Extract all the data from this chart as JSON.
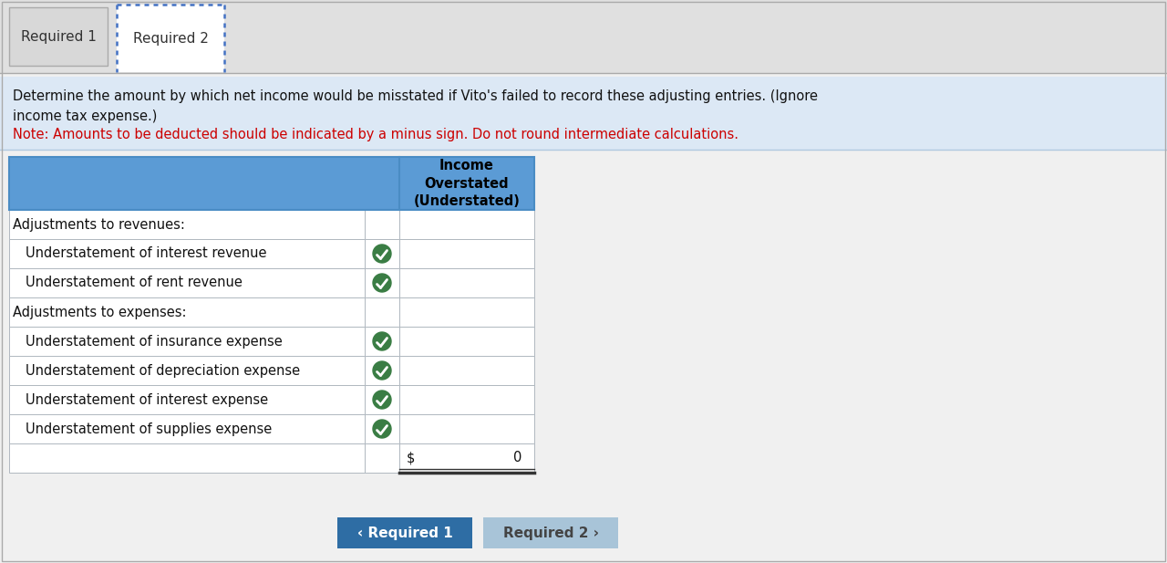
{
  "bg_color": "#f0f0f0",
  "tab1_label": "Required 1",
  "tab2_label": "Required 2",
  "instruction_bg": "#dce8f5",
  "instruction_text_line1": "Determine the amount by which net income would be misstated if Vito's failed to record these adjusting entries. (Ignore",
  "instruction_text_line2": "income tax expense.)",
  "note_text": "Note: Amounts to be deducted should be indicated by a minus sign. Do not round intermediate calculations.",
  "note_color": "#cc0000",
  "header_bg": "#5b9bd5",
  "header_text": "Income\nOverstated\n(Understated)",
  "rows": [
    {
      "label": "Adjustments to revenues:",
      "indent": false,
      "has_check": false,
      "is_section": true
    },
    {
      "label": "Understatement of interest revenue",
      "indent": true,
      "has_check": true,
      "is_section": false
    },
    {
      "label": "Understatement of rent revenue",
      "indent": true,
      "has_check": true,
      "is_section": false
    },
    {
      "label": "Adjustments to expenses:",
      "indent": false,
      "has_check": false,
      "is_section": true
    },
    {
      "label": "Understatement of insurance expense",
      "indent": true,
      "has_check": true,
      "is_section": false
    },
    {
      "label": "Understatement of depreciation expense",
      "indent": true,
      "has_check": true,
      "is_section": false
    },
    {
      "label": "Understatement of interest expense",
      "indent": true,
      "has_check": true,
      "is_section": false
    },
    {
      "label": "Understatement of supplies expense",
      "indent": true,
      "has_check": true,
      "is_section": false
    }
  ],
  "total_value": "0",
  "btn1_label": "Required 1",
  "btn2_label": "Required 2",
  "btn1_color": "#2e6da4",
  "btn2_color": "#a8c4d8",
  "check_color": "#3a7d44",
  "row_bg_white": "#ffffff",
  "row_bg_light": "#efefef",
  "border_color": "#b0b8c0",
  "tab_strip_bg": "#e0e0e0",
  "tab1_bg": "#d8d8d8",
  "tab2_bg": "#ffffff",
  "outer_border": "#aaaaaa"
}
